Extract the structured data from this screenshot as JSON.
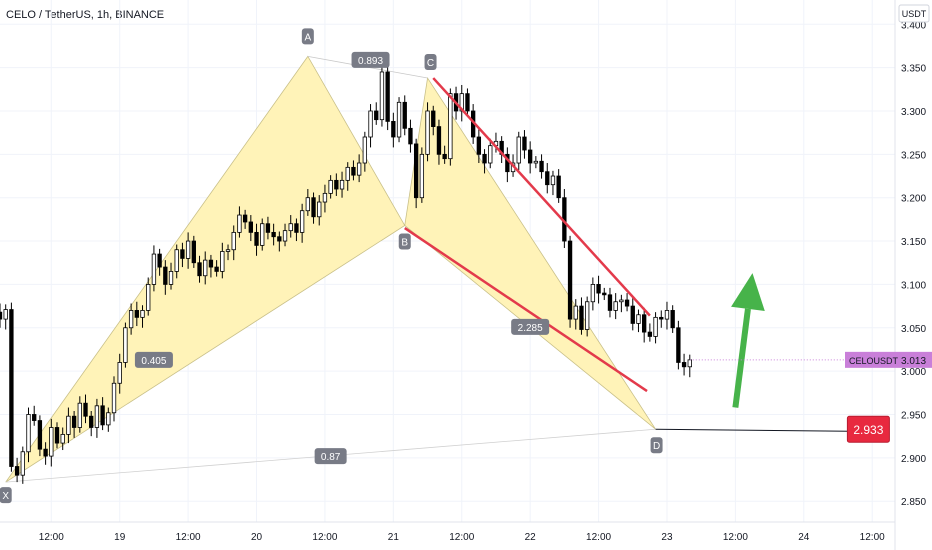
{
  "header": {
    "symbol_line": "CELO / TetherUS, 1h, BINANCE"
  },
  "currency_badge": "USDT",
  "price_tag": {
    "symbol": "CELOUSDT",
    "value": "3.013"
  },
  "target_label": "2.933",
  "colors": {
    "candle": "#000000",
    "pattern_fill": "#fff3b8",
    "pattern_edge": "#c9c089",
    "channel": "#e33a4b",
    "arrow": "#47b34a",
    "point_badge": "#787b86",
    "price_tag_bg": "#c97fd9",
    "target_bg": "#e8293f",
    "grid": "#f0f3fa",
    "axis_text": "#131722"
  },
  "chart_data": {
    "type": "candlestick",
    "x_axis": {
      "tick_labels": [
        "12:00",
        "19",
        "12:00",
        "20",
        "12:00",
        "21",
        "12:00",
        "22",
        "12:00",
        "23",
        "12:00",
        "24",
        "12:00"
      ],
      "tick_hours": [
        12,
        24,
        36,
        48,
        60,
        72,
        84,
        96,
        108,
        120,
        132,
        144,
        156
      ],
      "range_hours": [
        3,
        160
      ]
    },
    "y_axis": {
      "tick_labels": [
        "3.400",
        "3.350",
        "3.300",
        "3.250",
        "3.200",
        "3.150",
        "3.100",
        "3.050",
        "3.000",
        "2.950",
        "2.900",
        "2.850"
      ],
      "range": [
        2.826,
        3.428
      ]
    },
    "grid": true,
    "candles_close": [
      3.07,
      3.068,
      3.06,
      3.071,
      2.89,
      2.88,
      2.907,
      2.95,
      2.943,
      2.91,
      2.902,
      2.935,
      2.917,
      2.927,
      2.948,
      2.935,
      2.963,
      2.948,
      2.935,
      2.96,
      2.938,
      2.952,
      2.986,
      3.01,
      3.05,
      3.07,
      3.062,
      3.07,
      3.1,
      3.135,
      3.12,
      3.1,
      3.115,
      3.14,
      3.13,
      3.15,
      3.125,
      3.11,
      3.128,
      3.12,
      3.115,
      3.138,
      3.14,
      3.16,
      3.18,
      3.172,
      3.16,
      3.145,
      3.17,
      3.16,
      3.155,
      3.15,
      3.162,
      3.17,
      3.16,
      3.185,
      3.2,
      3.178,
      3.195,
      3.205,
      3.22,
      3.21,
      3.22,
      3.235,
      3.226,
      3.24,
      3.27,
      3.3,
      3.29,
      3.345,
      3.288,
      3.27,
      3.31,
      3.28,
      3.262,
      3.2,
      3.25,
      3.3,
      3.282,
      3.25,
      3.245,
      3.32,
      3.3,
      3.32,
      3.3,
      3.27,
      3.25,
      3.24,
      3.26,
      3.265,
      3.25,
      3.23,
      3.24,
      3.27,
      3.255,
      3.24,
      3.242,
      3.23,
      3.215,
      3.225,
      3.2,
      3.15,
      3.06,
      3.075,
      3.048,
      3.08,
      3.1,
      3.09,
      3.088,
      3.07,
      3.08,
      3.082,
      3.075,
      3.055,
      3.065,
      3.045,
      3.04,
      3.062,
      3.06,
      3.07,
      3.05,
      3.01,
      3.005,
      3.013
    ],
    "harmonic_pattern": {
      "points": [
        {
          "label": "X",
          "hour": 4.0,
          "price": 2.872
        },
        {
          "label": "A",
          "hour": 57.0,
          "price": 3.363
        },
        {
          "label": "B",
          "hour": 74.0,
          "price": 3.168
        },
        {
          "label": "C",
          "hour": 78.0,
          "price": 3.338
        },
        {
          "label": "D",
          "hour": 118.0,
          "price": 2.933
        }
      ],
      "ratios": [
        {
          "label": "0.405",
          "hour": 30.0,
          "price": 3.013
        },
        {
          "label": "0.893",
          "hour": 68.0,
          "price": 3.359
        },
        {
          "label": "2.285",
          "hour": 96.0,
          "price": 3.051
        },
        {
          "label": "0.87",
          "hour": 61.0,
          "price": 2.902
        }
      ]
    },
    "channel_lines": [
      {
        "from": [
          79.0,
          3.338
        ],
        "to": [
          117.0,
          3.064
        ]
      },
      {
        "from": [
          74.0,
          3.165
        ],
        "to": [
          116.5,
          2.977
        ]
      }
    ],
    "target_line": {
      "from_hour": 118.0,
      "to_hour": 152.0,
      "price": 2.933
    },
    "arrow": {
      "from": [
        132.0,
        2.958
      ],
      "to": [
        135.0,
        3.113
      ]
    }
  }
}
